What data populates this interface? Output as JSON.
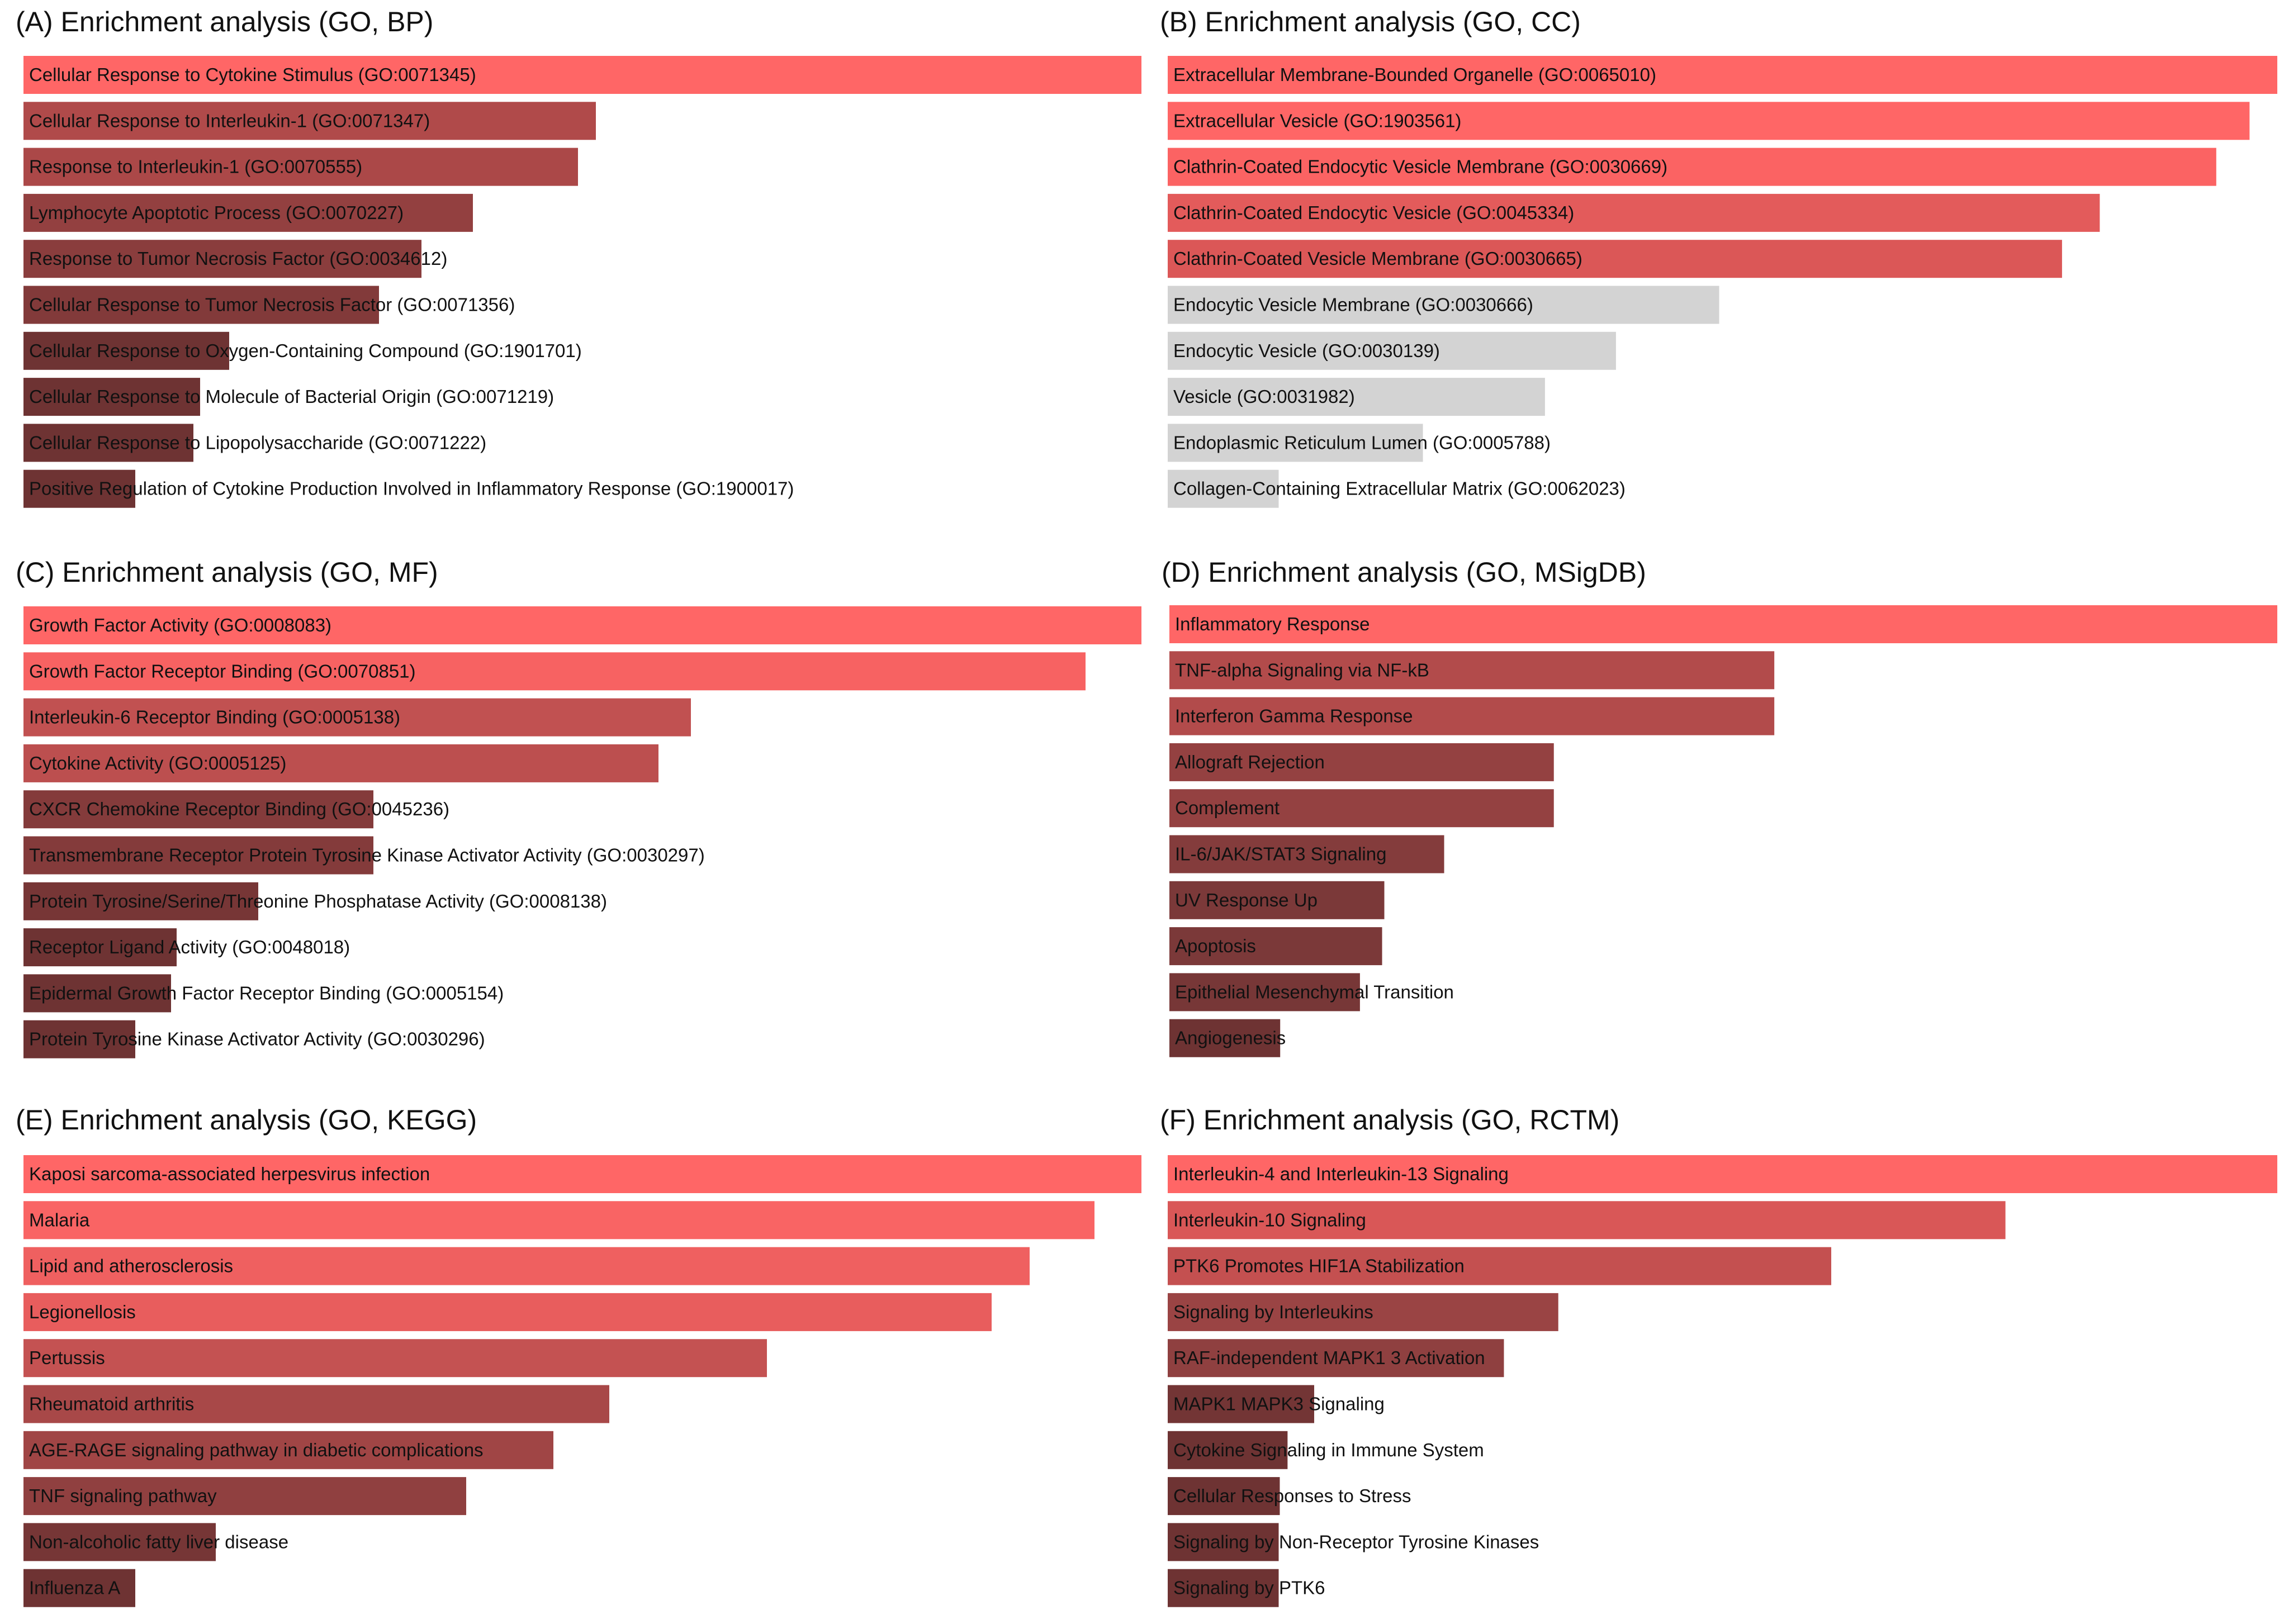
{
  "colors": {
    "high": "#ff6666",
    "mid": "#b84d4d",
    "low": "#6e3333",
    "grey": "#d3d3d3"
  },
  "chart_data": [
    {
      "type": "bar",
      "orientation": "horizontal",
      "title": "(A) Enrichment analysis (GO, BP)",
      "categories": [
        "Cellular Response to Cytokine Stimulus (GO:0071345)",
        "Cellular Response to Interleukin-1 (GO:0071347)",
        "Response to Interleukin-1 (GO:0070555)",
        "Lymphocyte Apoptotic Process (GO:0070227)",
        "Response to Tumor Necrosis Factor (GO:0034612)",
        "Cellular Response to Tumor Necrosis Factor (GO:0071356)",
        "Cellular Response to Oxygen-Containing Compound (GO:1901701)",
        "Cellular Response to Molecule of Bacterial Origin (GO:0071219)",
        "Cellular Response to Lipopolysaccharide (GO:0071222)",
        "Positive Regulation of Cytokine Production Involved in Inflammatory Response (GO:1900017)"
      ],
      "values": [
        1.0,
        0.512,
        0.496,
        0.402,
        0.356,
        0.318,
        0.184,
        0.158,
        0.152,
        0.1
      ],
      "colors": [
        "#ff6666",
        "#b04a4a",
        "#ab4848",
        "#934040",
        "#8a3d3d",
        "#823a3a",
        "#6e3333",
        "#6e3333",
        "#6e3333",
        "#6e3333"
      ]
    },
    {
      "type": "bar",
      "orientation": "horizontal",
      "title": "(B) Enrichment analysis (GO, CC)",
      "categories": [
        "Extracellular Membrane-Bounded Organelle (GO:0065010)",
        "Extracellular Vesicle (GO:1903561)",
        "Clathrin-Coated Endocytic Vesicle Membrane (GO:0030669)",
        "Clathrin-Coated Endocytic Vesicle (GO:0045334)",
        "Clathrin-Coated Vesicle Membrane (GO:0030665)",
        "Endocytic Vesicle Membrane (GO:0030666)",
        "Endocytic Vesicle (GO:0030139)",
        "Vesicle (GO:0031982)",
        "Endoplasmic Reticulum Lumen (GO:0005788)",
        "Collagen-Containing Extracellular Matrix (GO:0062023)"
      ],
      "values": [
        1.0,
        0.975,
        0.945,
        0.84,
        0.806,
        0.497,
        0.404,
        0.34,
        0.23,
        0.1
      ],
      "colors": [
        "#ff6666",
        "#ff6666",
        "#fb6363",
        "#e35b5b",
        "#db5757",
        "#d3d3d3",
        "#d3d3d3",
        "#d3d3d3",
        "#d3d3d3",
        "#d3d3d3"
      ]
    },
    {
      "type": "bar",
      "orientation": "horizontal",
      "title": "(C) Enrichment analysis (GO, MF)",
      "categories": [
        "Growth Factor Activity (GO:0008083)",
        "Growth Factor Receptor Binding (GO:0070851)",
        "Interleukin-6 Receptor Binding (GO:0005138)",
        "Cytokine Activity (GO:0005125)",
        "CXCR Chemokine Receptor Binding (GO:0045236)",
        "Transmembrane Receptor Protein Tyrosine Kinase Activator Activity (GO:0030297)",
        "Protein Tyrosine/Serine/Threonine Phosphatase Activity (GO:0008138)",
        "Receptor Ligand Activity (GO:0048018)",
        "Epidermal Growth Factor Receptor Binding (GO:0005154)",
        "Protein Tyrosine Kinase Activator Activity (GO:0030296)"
      ],
      "values": [
        1.0,
        0.95,
        0.597,
        0.568,
        0.313,
        0.313,
        0.21,
        0.137,
        0.132,
        0.1
      ],
      "colors": [
        "#ff6666",
        "#f76262",
        "#c15151",
        "#bc4f4f",
        "#843b3b",
        "#843b3b",
        "#773636",
        "#6e3333",
        "#6e3333",
        "#6e3333"
      ]
    },
    {
      "type": "bar",
      "orientation": "horizontal",
      "title": "(D) Enrichment analysis (GO, MSigDB)",
      "categories": [
        "Inflammatory Response",
        "TNF-alpha Signaling via NF-kB",
        "Interferon Gamma Response",
        "Allograft Rejection",
        "Complement",
        "IL-6/JAK/STAT3 Signaling",
        "UV Response Up",
        "Apoptosis",
        "Epithelial Mesenchymal Transition",
        "Angiogenesis"
      ],
      "values": [
        1.0,
        0.546,
        0.546,
        0.347,
        0.347,
        0.248,
        0.194,
        0.192,
        0.172,
        0.1
      ],
      "colors": [
        "#ff6666",
        "#b24b4b",
        "#b24b4b",
        "#944141",
        "#944141",
        "#843c3c",
        "#7b3939",
        "#7b3939",
        "#773737",
        "#6e3333"
      ]
    },
    {
      "type": "bar",
      "orientation": "horizontal",
      "title": "(E) Enrichment analysis (GO, KEGG)",
      "categories": [
        "Kaposi sarcoma-associated herpesvirus infection",
        "Malaria",
        "Lipid and atherosclerosis",
        "Legionellosis",
        "Pertussis",
        "Rheumatoid arthritis",
        "AGE-RAGE signaling pathway in diabetic complications",
        "TNF signaling pathway",
        "Non-alcoholic fatty liver disease",
        "Influenza A"
      ],
      "values": [
        1.0,
        0.958,
        0.9,
        0.866,
        0.665,
        0.524,
        0.474,
        0.396,
        0.172,
        0.1
      ],
      "colors": [
        "#ff6666",
        "#f96464",
        "#ef6060",
        "#e85d5d",
        "#c45252",
        "#a84848",
        "#a04545",
        "#904040",
        "#763636",
        "#6e3333"
      ]
    },
    {
      "type": "bar",
      "orientation": "horizontal",
      "title": "(F) Enrichment analysis (GO, RCTM)",
      "categories": [
        "Interleukin-4 and Interleukin-13 Signaling",
        "Interleukin-10 Signaling",
        "PTK6 Promotes HIF1A Stabilization",
        "Signaling by Interleukins",
        "RAF-independent MAPK1 3 Activation",
        "MAPK1 MAPK3 Signaling",
        "Cytokine Signaling in Immune System",
        "Cellular Responses to Stress",
        "Signaling by Non-Receptor Tyrosine Kinases",
        "Signaling by PTK6"
      ],
      "values": [
        1.0,
        0.755,
        0.598,
        0.352,
        0.303,
        0.132,
        0.108,
        0.101,
        0.1,
        0.1
      ],
      "colors": [
        "#ff6666",
        "#d95757",
        "#c45050",
        "#9a4444",
        "#8f4040",
        "#733535",
        "#6e3333",
        "#6e3333",
        "#6e3333",
        "#6e3333"
      ]
    }
  ]
}
